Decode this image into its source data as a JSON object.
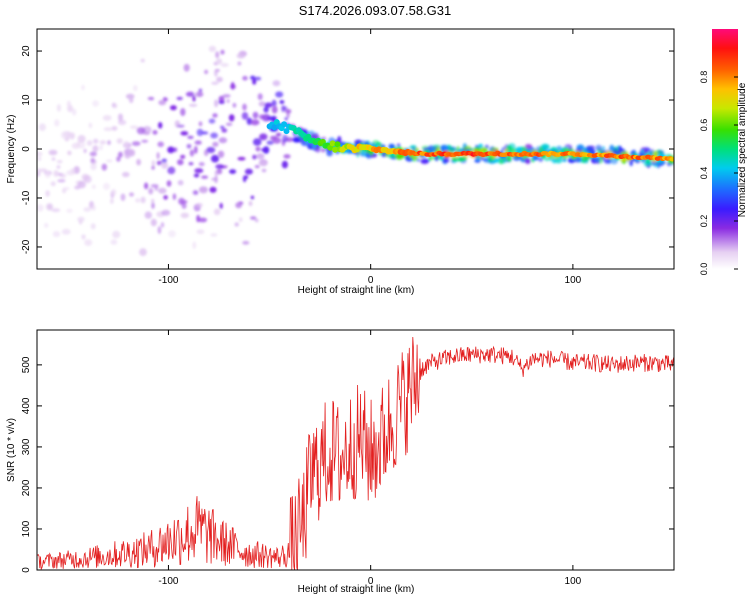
{
  "title": "S174.2026.093.07.58.G31",
  "colors": {
    "snr_line": "#e32020",
    "frame": "#000000",
    "background": "#ffffff"
  },
  "chart_data": [
    {
      "type": "heatmap",
      "name": "spectrogram",
      "xlabel": "Height of straight line (km)",
      "ylabel": "Frequency (Hz)",
      "xlim": [
        -165,
        150
      ],
      "ylim": [
        -24.5,
        24.5
      ],
      "xticks": [
        -100,
        0,
        100
      ],
      "xtick_labels": [
        "-100",
        "0",
        "100"
      ],
      "yticks": [
        20,
        10,
        0,
        -10,
        -20
      ],
      "ytick_labels": [
        "20",
        "10",
        "0",
        "-10",
        "-20"
      ],
      "colorbar": {
        "label": "Normalized spectral amplitude",
        "range": [
          0.0,
          1.0
        ],
        "ticks": [
          0.0,
          0.2,
          0.4,
          0.6,
          0.8
        ],
        "tick_labels": [
          "0.0",
          "0.2",
          "0.4",
          "0.6",
          "0.8"
        ],
        "colormap": "rainbow (white-violet-blue-cyan-green-yellow-red-magenta)"
      },
      "ridge": {
        "description": "Dominant frequency ridge vs height",
        "x": [
          -145,
          -120,
          -100,
          -80,
          -60,
          -45,
          -35,
          -25,
          -10,
          0,
          25,
          50,
          75,
          100,
          125,
          150
        ],
        "y": [
          -5,
          -3,
          0,
          2,
          3,
          5,
          3,
          1,
          0,
          0,
          -1,
          -1,
          -1,
          -1,
          -1.5,
          -2
        ],
        "amplitude": [
          0.1,
          0.15,
          0.25,
          0.3,
          0.35,
          0.45,
          0.5,
          0.6,
          0.75,
          0.8,
          0.9,
          0.95,
          0.9,
          0.85,
          0.9,
          0.85
        ]
      }
    },
    {
      "type": "line",
      "name": "snr",
      "xlabel": "Height of straight line (km)",
      "ylabel": "SNR (10 * v/v)",
      "xlim": [
        -165,
        150
      ],
      "ylim": [
        0,
        585
      ],
      "xticks": [
        -100,
        0,
        100
      ],
      "xtick_labels": [
        "-100",
        "0",
        "100"
      ],
      "yticks": [
        0,
        100,
        200,
        300,
        400,
        500
      ],
      "ytick_labels": [
        "0",
        "100",
        "200",
        "300",
        "400",
        "500"
      ],
      "series": [
        {
          "name": "SNR",
          "x": [
            -165,
            -150,
            -130,
            -110,
            -95,
            -85,
            -75,
            -60,
            -45,
            -38,
            -33,
            -30,
            -25,
            -20,
            -15,
            -10,
            -5,
            0,
            5,
            10,
            15,
            20,
            25,
            30,
            40,
            50,
            60,
            70,
            75,
            80,
            90,
            100,
            110,
            120,
            130,
            140,
            150
          ],
          "y": [
            20,
            25,
            35,
            50,
            80,
            100,
            70,
            40,
            30,
            50,
            120,
            220,
            260,
            290,
            270,
            300,
            320,
            280,
            310,
            360,
            400,
            440,
            490,
            505,
            520,
            525,
            525,
            520,
            490,
            515,
            515,
            505,
            505,
            500,
            505,
            505,
            500
          ]
        }
      ]
    }
  ]
}
